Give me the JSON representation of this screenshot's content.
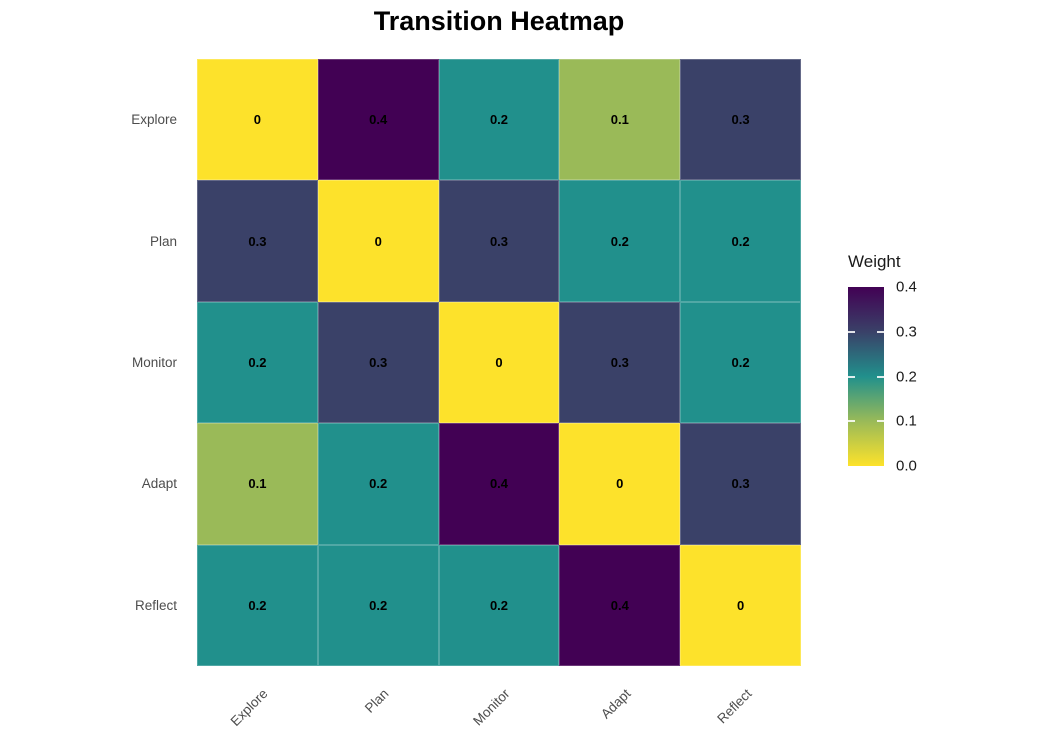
{
  "title": "Transition Heatmap",
  "chart_data": {
    "type": "heatmap",
    "title": "Transition Heatmap",
    "x_categories": [
      "Explore",
      "Plan",
      "Monitor",
      "Adapt",
      "Reflect"
    ],
    "y_categories": [
      "Explore",
      "Plan",
      "Monitor",
      "Adapt",
      "Reflect"
    ],
    "values": [
      [
        0,
        0.4,
        0.2,
        0.1,
        0.3
      ],
      [
        0.3,
        0,
        0.3,
        0.2,
        0.2
      ],
      [
        0.2,
        0.3,
        0,
        0.3,
        0.2
      ],
      [
        0.1,
        0.2,
        0.4,
        0,
        0.3
      ],
      [
        0.2,
        0.2,
        0.2,
        0.4,
        0
      ]
    ],
    "cell_label_style": "bold black, value printed in each tile",
    "legend": {
      "title": "Weight",
      "tick_labels": [
        "0.4",
        "0.3",
        "0.2",
        "0.1",
        "0.0"
      ],
      "range": [
        0,
        0.4
      ],
      "position": "right",
      "colormap": "viridis reversed (0 = yellow, 0.4 = dark purple)"
    },
    "value_colors": {
      "0": "#FDE22B",
      "0.1": "#9ABA58",
      "0.2": "#21908C",
      "0.3": "#3A4168",
      "0.4": "#420154"
    },
    "axis_text_color": "#4D4D4D",
    "grid": false,
    "x_tick_rotation_deg": 45
  }
}
